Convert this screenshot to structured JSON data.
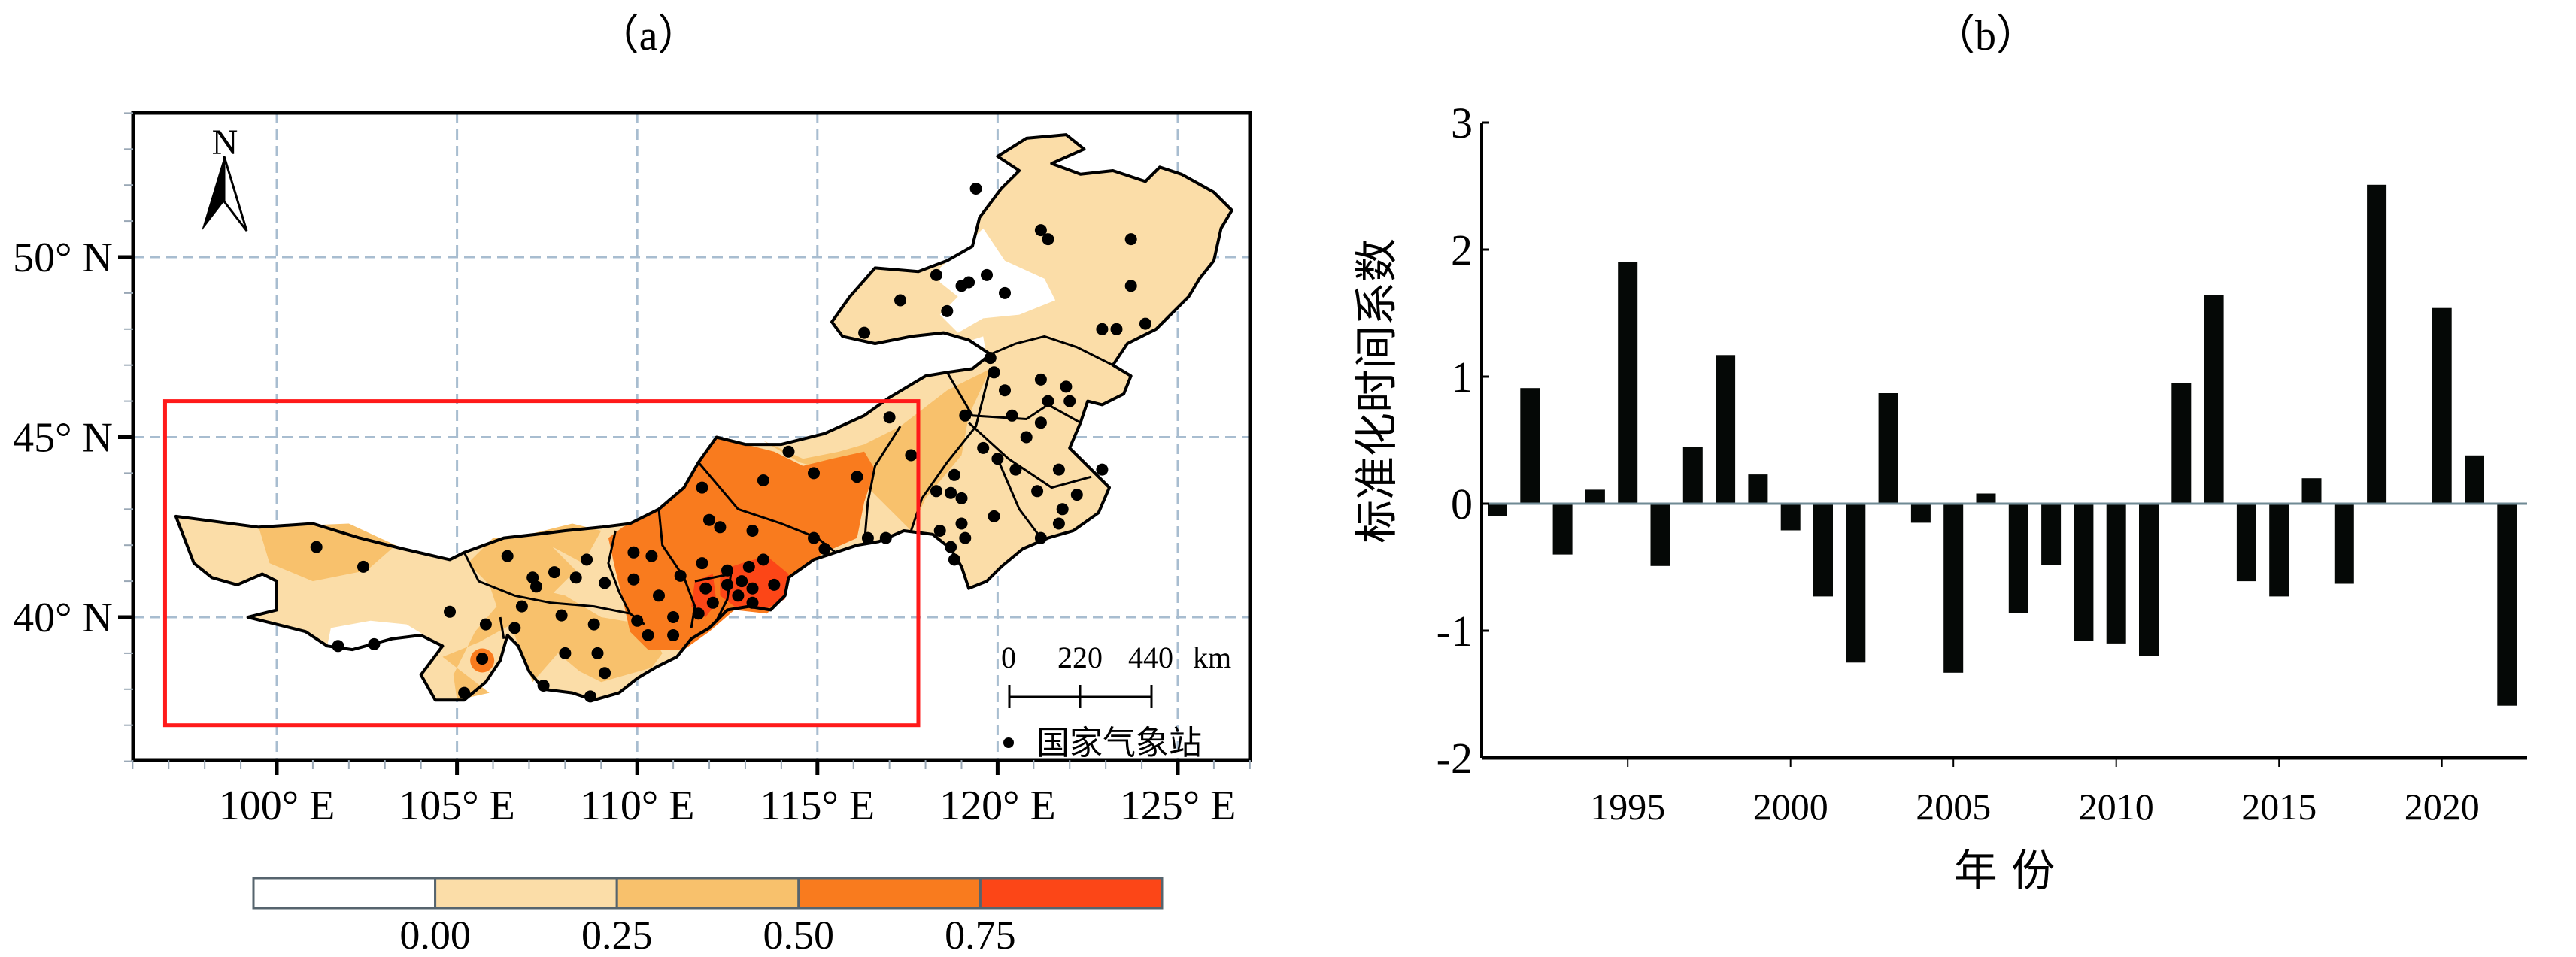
{
  "panel_a": {
    "title": "（a）",
    "lat_labels": [
      {
        "lat": 50,
        "label": "50° N"
      },
      {
        "lat": 45,
        "label": "45° N"
      },
      {
        "lat": 40,
        "label": "40° N"
      }
    ],
    "lon_labels": [
      {
        "lon": 100,
        "label": "100° E"
      },
      {
        "lon": 105,
        "label": "105° E"
      },
      {
        "lon": 110,
        "label": "110° E"
      },
      {
        "lon": 115,
        "label": "115° E"
      },
      {
        "lon": 120,
        "label": "120° E"
      },
      {
        "lon": 125,
        "label": "125° E"
      }
    ],
    "extent": {
      "lon_min": 96,
      "lon_max": 127,
      "lat_min": 36,
      "lat_max": 54
    },
    "north_arrow": {
      "label": "N",
      "icon": "north-arrow-icon"
    },
    "scale_bar": {
      "labels": [
        "0",
        "220",
        "440"
      ],
      "unit": "km"
    },
    "legend": {
      "station_label": "国家气象站",
      "icon": "station-dot-icon"
    },
    "highlight_box": {
      "lon_min": 96.9,
      "lon_max": 117.8,
      "lat_min": 37.0,
      "lat_max": 46.0,
      "color": "#ff1a1a"
    },
    "colorbar": {
      "colors": [
        "#ffffff",
        "#fbdda8",
        "#f8c16c",
        "#f97b1e",
        "#fc4617"
      ],
      "labels": [
        "0.00",
        "0.25",
        "0.50",
        "0.75"
      ]
    },
    "colors": {
      "grid": "#a8bdd0",
      "boundary": "#000000",
      "station": "#000000"
    }
  },
  "panel_b": {
    "title": "（b）",
    "ylabel": "标准化时间系数",
    "xlabel": "年 份",
    "colors": {
      "bar": "#050806",
      "zero_line": "#6f8a94"
    }
  },
  "chart_data": {
    "type": "bar",
    "title": "（b）",
    "xlabel": "年 份",
    "ylabel": "标准化时间系数",
    "ylim": [
      -2,
      3
    ],
    "yticks": [
      -2,
      -1,
      0,
      1,
      2,
      3
    ],
    "xticks": [
      1995,
      2000,
      2005,
      2010,
      2015,
      2020
    ],
    "xlim": [
      1990.55,
      2022.6
    ],
    "categories": [
      1991,
      1992,
      1993,
      1994,
      1995,
      1996,
      1997,
      1998,
      1999,
      2000,
      2001,
      2002,
      2003,
      2004,
      2005,
      2006,
      2007,
      2008,
      2009,
      2010,
      2011,
      2012,
      2013,
      2014,
      2015,
      2016,
      2017,
      2018,
      2019,
      2020,
      2021,
      2022
    ],
    "values": [
      -0.1,
      0.91,
      -0.4,
      0.11,
      1.9,
      -0.49,
      0.45,
      1.17,
      0.23,
      -0.21,
      -0.73,
      -1.25,
      0.87,
      -0.15,
      -1.33,
      0.08,
      -0.86,
      -0.48,
      -1.08,
      -1.1,
      -1.2,
      0.95,
      1.64,
      -0.61,
      -0.73,
      0.2,
      -0.63,
      2.51,
      0.0,
      1.54,
      0.38,
      -1.59
    ],
    "grid": false
  }
}
